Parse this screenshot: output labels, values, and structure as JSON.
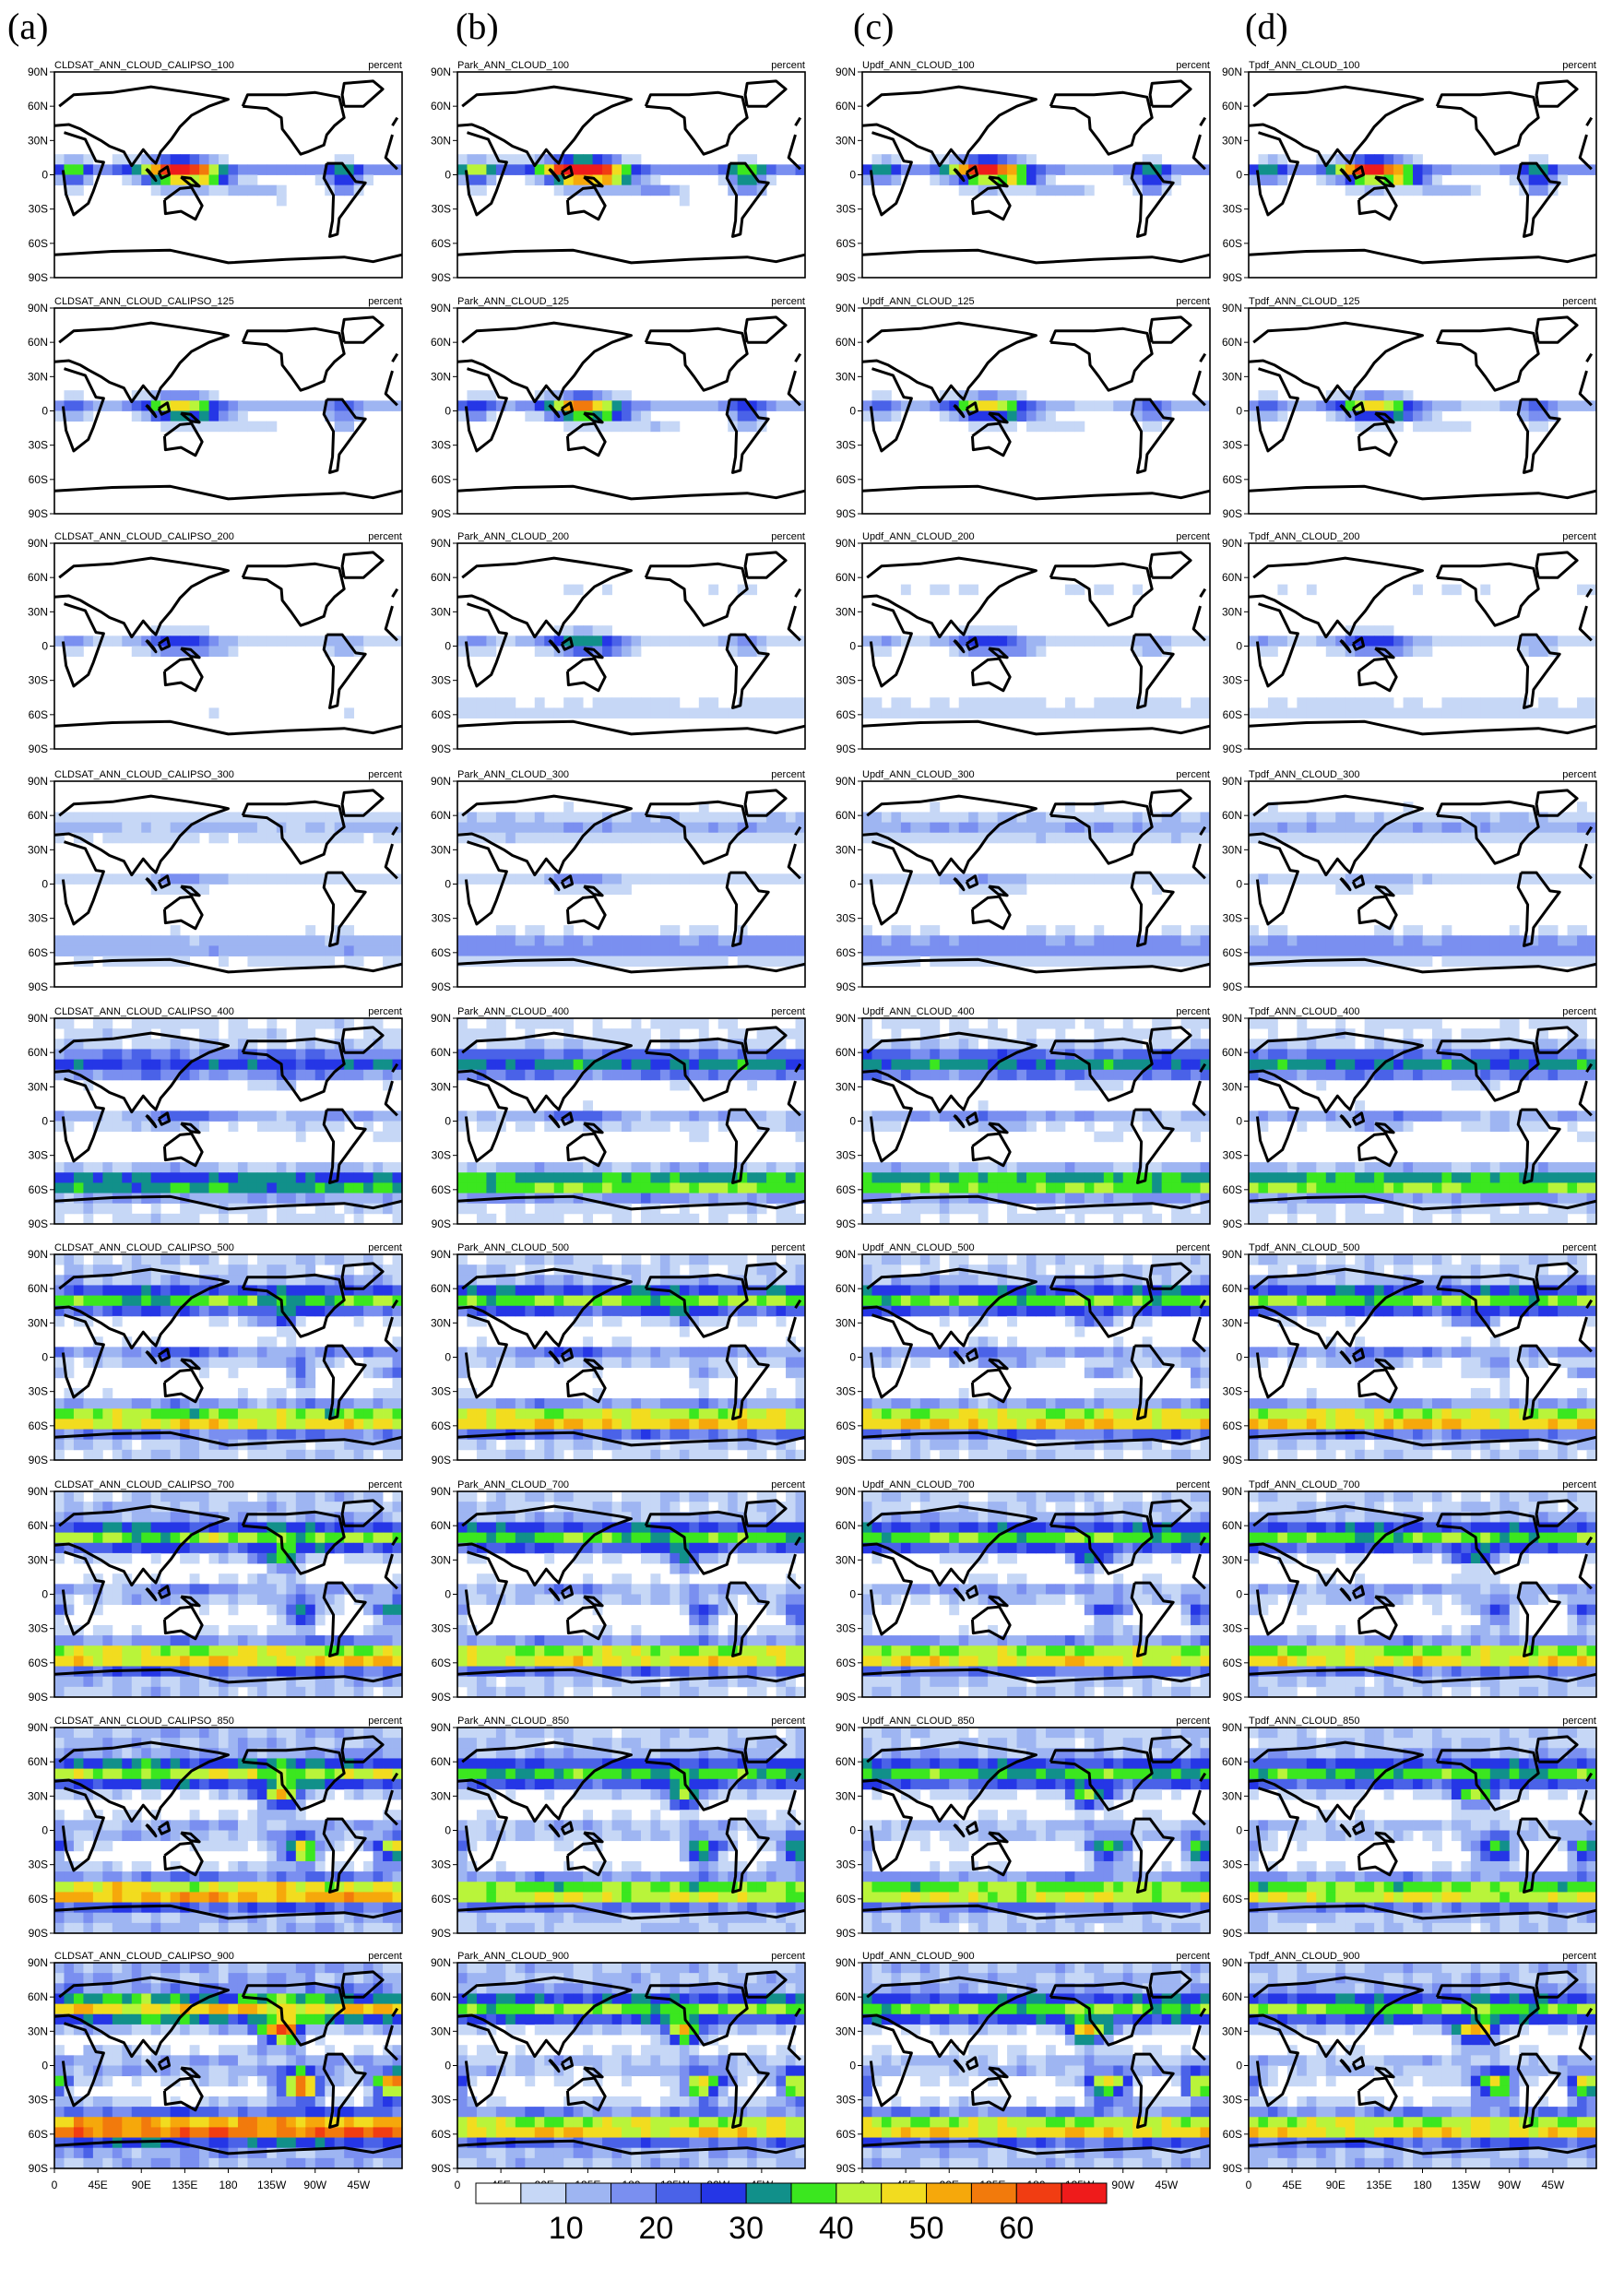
{
  "figure": {
    "column_labels": [
      "(a)",
      "(b)",
      "(c)",
      "(d)"
    ],
    "units": "percent"
  },
  "chart_data": {
    "type": "heatmap",
    "rows": 9,
    "columns": 4,
    "lat_ticks": [
      "90N",
      "60N",
      "30N",
      "0",
      "30S",
      "60S",
      "90S"
    ],
    "lon_ticks": [
      "0",
      "45E",
      "90E",
      "135E",
      "180",
      "135W",
      "90W",
      "45W"
    ],
    "lon_tick_values": [
      0,
      45,
      90,
      135,
      180,
      225,
      270,
      315
    ],
    "lat_tick_values": [
      90,
      60,
      30,
      0,
      -30,
      -60,
      -90
    ],
    "xlim": [
      0,
      360
    ],
    "ylim": [
      -90,
      90
    ],
    "panels": [
      {
        "title": "CLDSAT_ANN_CLOUD_CALIPSO_100",
        "units": "percent"
      },
      {
        "title": "Park_ANN_CLOUD_100",
        "units": "percent"
      },
      {
        "title": "Updf_ANN_CLOUD_100",
        "units": "percent"
      },
      {
        "title": "Tpdf_ANN_CLOUD_100",
        "units": "percent"
      },
      {
        "title": "CLDSAT_ANN_CLOUD_CALIPSO_125",
        "units": "percent"
      },
      {
        "title": "Park_ANN_CLOUD_125",
        "units": "percent"
      },
      {
        "title": "Updf_ANN_CLOUD_125",
        "units": "percent"
      },
      {
        "title": "Tpdf_ANN_CLOUD_125",
        "units": "percent"
      },
      {
        "title": "CLDSAT_ANN_CLOUD_CALIPSO_200",
        "units": "percent"
      },
      {
        "title": "Park_ANN_CLOUD_200",
        "units": "percent"
      },
      {
        "title": "Updf_ANN_CLOUD_200",
        "units": "percent"
      },
      {
        "title": "Tpdf_ANN_CLOUD_200",
        "units": "percent"
      },
      {
        "title": "CLDSAT_ANN_CLOUD_CALIPSO_300",
        "units": "percent"
      },
      {
        "title": "Park_ANN_CLOUD_300",
        "units": "percent"
      },
      {
        "title": "Updf_ANN_CLOUD_300",
        "units": "percent"
      },
      {
        "title": "Tpdf_ANN_CLOUD_300",
        "units": "percent"
      },
      {
        "title": "CLDSAT_ANN_CLOUD_CALIPSO_400",
        "units": "percent"
      },
      {
        "title": "Park_ANN_CLOUD_400",
        "units": "percent"
      },
      {
        "title": "Updf_ANN_CLOUD_400",
        "units": "percent"
      },
      {
        "title": "Tpdf_ANN_CLOUD_400",
        "units": "percent"
      },
      {
        "title": "CLDSAT_ANN_CLOUD_CALIPSO_500",
        "units": "percent"
      },
      {
        "title": "Park_ANN_CLOUD_500",
        "units": "percent"
      },
      {
        "title": "Updf_ANN_CLOUD_500",
        "units": "percent"
      },
      {
        "title": "Tpdf_ANN_CLOUD_500",
        "units": "percent"
      },
      {
        "title": "CLDSAT_ANN_CLOUD_CALIPSO_700",
        "units": "percent"
      },
      {
        "title": "Park_ANN_CLOUD_700",
        "units": "percent"
      },
      {
        "title": "Updf_ANN_CLOUD_700",
        "units": "percent"
      },
      {
        "title": "Tpdf_ANN_CLOUD_700",
        "units": "percent"
      },
      {
        "title": "CLDSAT_ANN_CLOUD_CALIPSO_850",
        "units": "percent"
      },
      {
        "title": "Park_ANN_CLOUD_850",
        "units": "percent"
      },
      {
        "title": "Updf_ANN_CLOUD_850",
        "units": "percent"
      },
      {
        "title": "Tpdf_ANN_CLOUD_850",
        "units": "percent"
      },
      {
        "title": "CLDSAT_ANN_CLOUD_CALIPSO_900",
        "units": "percent"
      },
      {
        "title": "Park_ANN_CLOUD_900",
        "units": "percent"
      },
      {
        "title": "Updf_ANN_CLOUD_900",
        "units": "percent"
      },
      {
        "title": "Tpdf_ANN_CLOUD_900",
        "units": "percent"
      }
    ],
    "colorbar": {
      "colors": [
        "#ffffff",
        "#c6d7f6",
        "#9eb5f2",
        "#7a8ff0",
        "#4a62e8",
        "#2536e6",
        "#11908a",
        "#3be71f",
        "#b9f43a",
        "#f2dc1f",
        "#f6a80b",
        "#f27a0c",
        "#f13d12",
        "#ef1b1b"
      ],
      "tick_labels": [
        "10",
        "20",
        "30",
        "40",
        "50",
        "60"
      ],
      "tick_values": [
        10,
        20,
        30,
        40,
        50,
        60
      ],
      "levels": [
        0,
        5,
        10,
        15,
        20,
        25,
        30,
        35,
        40,
        45,
        50,
        55,
        60,
        65,
        70
      ]
    }
  }
}
